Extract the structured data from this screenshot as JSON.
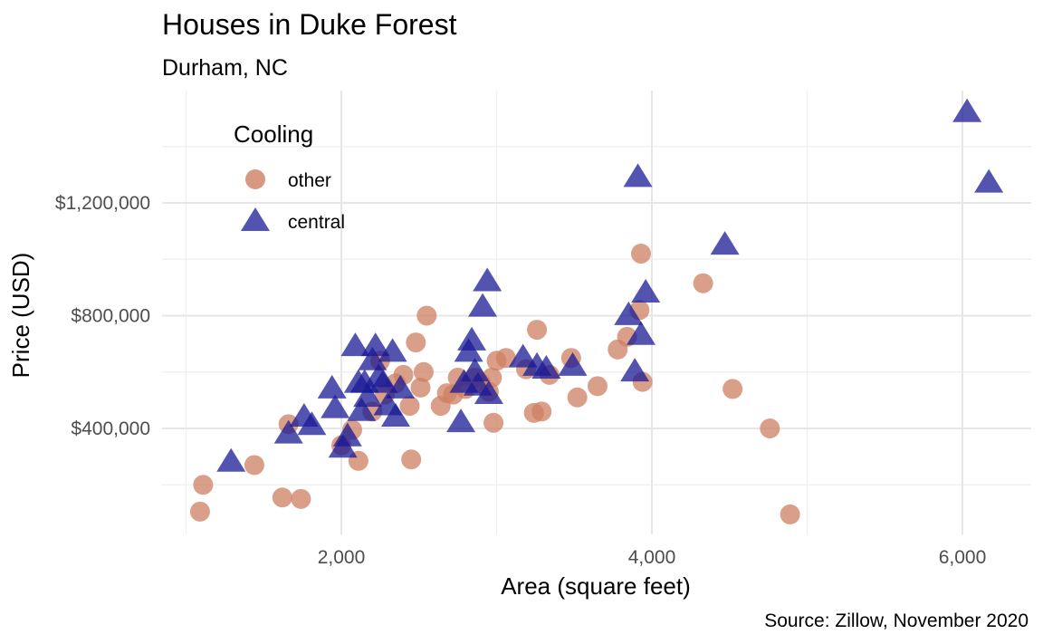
{
  "chart_data": {
    "type": "scatter",
    "title": "Houses in Duke Forest",
    "subtitle": "Durham, NC",
    "xlabel": "Area (square feet)",
    "ylabel": "Price (USD)",
    "caption": "Source: Zillow, November 2020",
    "xlim": [
      1000,
      6200
    ],
    "ylim": [
      50000,
      1550000
    ],
    "x_ticks": [
      2000,
      4000,
      6000
    ],
    "x_tick_labels": [
      "2,000",
      "4,000",
      "6,000"
    ],
    "y_ticks": [
      400000,
      800000,
      1200000
    ],
    "y_tick_labels": [
      "$400,000",
      "$800,000",
      "$1,200,000"
    ],
    "grid": true,
    "legend": {
      "title": "Cooling",
      "placement": "top-left",
      "entries": [
        {
          "label": "other",
          "shape": "circle"
        },
        {
          "label": "central",
          "shape": "triangle"
        }
      ]
    },
    "colors": {
      "other": "#cd7f61",
      "central": "#1a1a96"
    },
    "series": [
      {
        "name": "other",
        "shape": "circle",
        "points": [
          [
            1090,
            105000
          ],
          [
            1110,
            200000
          ],
          [
            1440,
            270000
          ],
          [
            1620,
            155000
          ],
          [
            1660,
            415000
          ],
          [
            1740,
            150000
          ],
          [
            2000,
            340000
          ],
          [
            2070,
            395000
          ],
          [
            2110,
            285000
          ],
          [
            2200,
            460000
          ],
          [
            2250,
            640000
          ],
          [
            2280,
            520000
          ],
          [
            2350,
            560000
          ],
          [
            2400,
            590000
          ],
          [
            2440,
            480000
          ],
          [
            2450,
            290000
          ],
          [
            2480,
            705000
          ],
          [
            2510,
            545000
          ],
          [
            2530,
            600000
          ],
          [
            2550,
            800000
          ],
          [
            2640,
            480000
          ],
          [
            2680,
            525000
          ],
          [
            2720,
            520000
          ],
          [
            2750,
            580000
          ],
          [
            2800,
            540000
          ],
          [
            2860,
            580000
          ],
          [
            2900,
            560000
          ],
          [
            2950,
            530000
          ],
          [
            2970,
            580000
          ],
          [
            2980,
            420000
          ],
          [
            3000,
            640000
          ],
          [
            3060,
            650000
          ],
          [
            3190,
            610000
          ],
          [
            3240,
            455000
          ],
          [
            3260,
            750000
          ],
          [
            3290,
            460000
          ],
          [
            3340,
            590000
          ],
          [
            3480,
            650000
          ],
          [
            3520,
            510000
          ],
          [
            3650,
            550000
          ],
          [
            3780,
            680000
          ],
          [
            3840,
            725000
          ],
          [
            3920,
            820000
          ],
          [
            3930,
            1020000
          ],
          [
            3940,
            565000
          ],
          [
            4330,
            915000
          ],
          [
            4520,
            540000
          ],
          [
            4760,
            400000
          ],
          [
            4890,
            95000
          ]
        ]
      },
      {
        "name": "central",
        "shape": "triangle",
        "points": [
          [
            1290,
            280000
          ],
          [
            1660,
            380000
          ],
          [
            1760,
            440000
          ],
          [
            1810,
            410000
          ],
          [
            1940,
            540000
          ],
          [
            1960,
            470000
          ],
          [
            2010,
            330000
          ],
          [
            2040,
            370000
          ],
          [
            2090,
            690000
          ],
          [
            2110,
            560000
          ],
          [
            2130,
            460000
          ],
          [
            2150,
            560000
          ],
          [
            2170,
            510000
          ],
          [
            2200,
            640000
          ],
          [
            2220,
            690000
          ],
          [
            2240,
            580000
          ],
          [
            2270,
            560000
          ],
          [
            2300,
            480000
          ],
          [
            2330,
            670000
          ],
          [
            2350,
            440000
          ],
          [
            2380,
            540000
          ],
          [
            2770,
            420000
          ],
          [
            2790,
            560000
          ],
          [
            2820,
            670000
          ],
          [
            2840,
            710000
          ],
          [
            2860,
            600000
          ],
          [
            2880,
            550000
          ],
          [
            2910,
            830000
          ],
          [
            2940,
            920000
          ],
          [
            2950,
            520000
          ],
          [
            3170,
            650000
          ],
          [
            3260,
            620000
          ],
          [
            3320,
            610000
          ],
          [
            3490,
            620000
          ],
          [
            3850,
            800000
          ],
          [
            3890,
            600000
          ],
          [
            3910,
            1290000
          ],
          [
            3930,
            730000
          ],
          [
            3960,
            880000
          ],
          [
            4470,
            1050000
          ],
          [
            6030,
            1520000
          ],
          [
            6170,
            1270000
          ]
        ]
      }
    ]
  }
}
